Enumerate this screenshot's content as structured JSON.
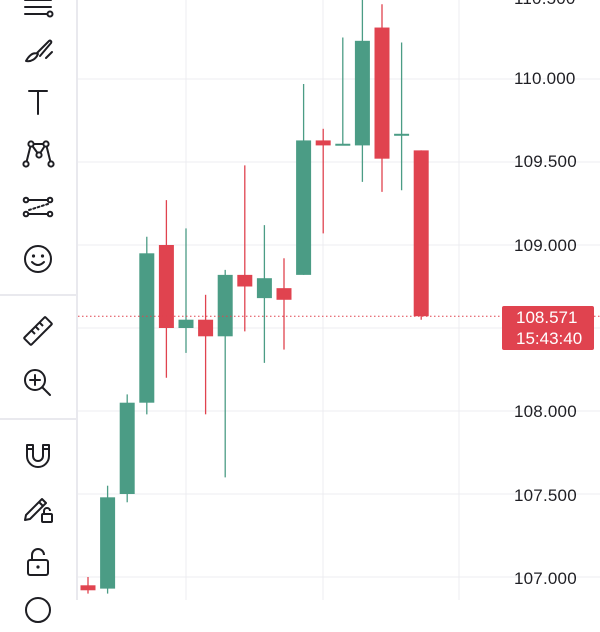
{
  "colors": {
    "up": "#4b9c85",
    "down": "#e0434f",
    "grid": "#ececf0",
    "axis_text": "#1f1f24",
    "icon": "#1e1e23"
  },
  "toolbar": {
    "tools": [
      {
        "name": "lines-menu-icon"
      },
      {
        "name": "brush-icon"
      },
      {
        "name": "text-icon"
      },
      {
        "name": "pattern-icon"
      },
      {
        "name": "prediction-icon"
      },
      {
        "name": "emoji-icon"
      },
      {
        "name": "ruler-icon"
      },
      {
        "name": "zoom-in-icon"
      },
      {
        "name": "magnet-icon"
      },
      {
        "name": "lock-drawing-icon"
      },
      {
        "name": "lock-icon"
      }
    ]
  },
  "price_axis": {
    "labels": [
      "110.000",
      "109.500",
      "109.000",
      "108.000",
      "107.500",
      "107.000"
    ],
    "top_partial_label": "110.500"
  },
  "last_price": {
    "value": "108.571",
    "countdown": "15:43:40"
  },
  "chart_data": {
    "type": "candlestick",
    "y_ticks": [
      107.0,
      107.5,
      108.0,
      108.5,
      109.0,
      109.5,
      110.0,
      110.5
    ],
    "candles": [
      {
        "o": 106.95,
        "h": 107.0,
        "l": 106.9,
        "c": 106.92
      },
      {
        "o": 106.93,
        "h": 107.55,
        "l": 106.9,
        "c": 107.48
      },
      {
        "o": 107.5,
        "h": 108.1,
        "l": 107.45,
        "c": 108.05
      },
      {
        "o": 108.05,
        "h": 109.05,
        "l": 107.98,
        "c": 108.95
      },
      {
        "o": 109.0,
        "h": 109.27,
        "l": 108.2,
        "c": 108.5
      },
      {
        "o": 108.5,
        "h": 109.1,
        "l": 108.35,
        "c": 108.55
      },
      {
        "o": 108.55,
        "h": 108.7,
        "l": 107.98,
        "c": 108.45
      },
      {
        "o": 108.45,
        "h": 108.85,
        "l": 107.6,
        "c": 108.82
      },
      {
        "o": 108.82,
        "h": 109.48,
        "l": 108.48,
        "c": 108.75
      },
      {
        "o": 108.68,
        "h": 109.12,
        "l": 108.29,
        "c": 108.8
      },
      {
        "o": 108.74,
        "h": 108.92,
        "l": 108.37,
        "c": 108.67
      },
      {
        "o": 108.82,
        "h": 109.97,
        "l": 108.82,
        "c": 109.63
      },
      {
        "o": 109.63,
        "h": 109.7,
        "l": 109.07,
        "c": 109.6
      },
      {
        "o": 109.6,
        "h": 110.25,
        "l": 109.6,
        "c": 109.61
      },
      {
        "o": 109.6,
        "h": 110.5,
        "l": 109.38,
        "c": 110.23
      },
      {
        "o": 110.31,
        "h": 110.45,
        "l": 109.32,
        "c": 109.52
      },
      {
        "o": 109.67,
        "h": 110.22,
        "l": 109.33,
        "c": 109.67
      },
      {
        "o": 109.57,
        "h": 109.57,
        "l": 108.55,
        "c": 108.571
      }
    ],
    "last_price": 108.571
  }
}
